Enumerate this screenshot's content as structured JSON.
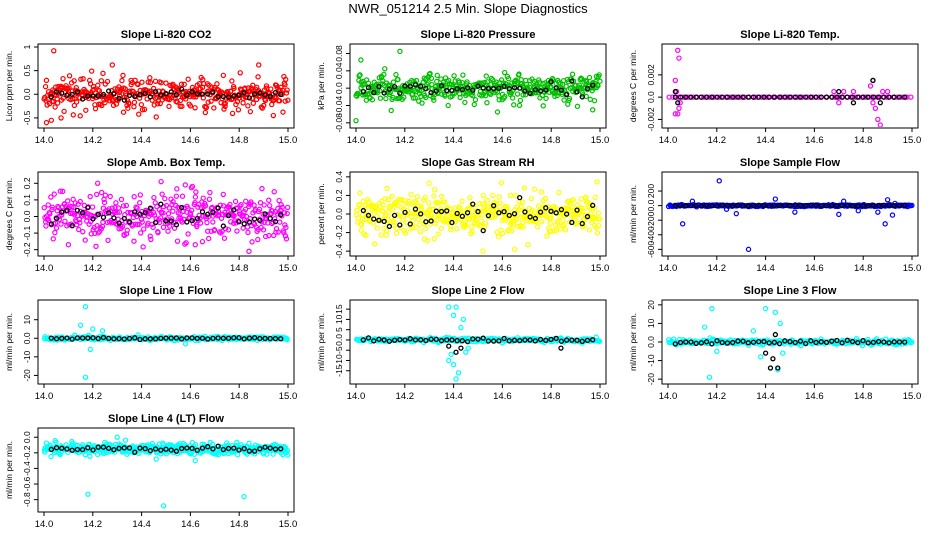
{
  "figure_title": "NWR_051214  2.5 Min. Slope Diagnostics",
  "chart_data": [
    {
      "type": "scatter",
      "title": "Slope Li-820 CO2",
      "ylabel": "Licor ppm per min.",
      "xlim": [
        14.0,
        15.0
      ],
      "ylim": [
        -0.65,
        1.0
      ],
      "yticks": [
        -0.5,
        0.0,
        0.5,
        1.0
      ],
      "xticks": [
        14.0,
        14.2,
        14.4,
        14.6,
        14.8,
        15.0
      ],
      "color": "#ff0000",
      "center": 0.0,
      "spread": 0.3,
      "points": 420,
      "black_spread": 0.09,
      "outliers": [
        [
          14.04,
          0.92
        ],
        [
          14.01,
          -0.6
        ],
        [
          14.03,
          -0.55
        ],
        [
          14.07,
          -0.5
        ],
        [
          14.28,
          0.62
        ],
        [
          14.88,
          0.62
        ],
        [
          14.46,
          -0.48
        ],
        [
          14.94,
          -0.45
        ]
      ]
    },
    {
      "type": "scatter",
      "title": "Slope Li-820 Pressure",
      "ylabel": "kPa per min.",
      "xlim": [
        14.0,
        15.0
      ],
      "ylim": [
        -0.085,
        0.095
      ],
      "yticks": [
        -0.08,
        -0.04,
        0.0,
        0.04,
        0.08
      ],
      "xticks": [
        14.0,
        14.2,
        14.4,
        14.6,
        14.8,
        15.0
      ],
      "color": "#00c000",
      "center": 0.0,
      "spread": 0.028,
      "points": 420,
      "black_spread": 0.012,
      "outliers": [
        [
          14.18,
          0.085
        ],
        [
          14.0,
          -0.075
        ],
        [
          14.02,
          0.065
        ],
        [
          14.97,
          -0.05
        ],
        [
          14.58,
          -0.055
        ]
      ]
    },
    {
      "type": "scatter",
      "title": "Slope Li-820 Temp.",
      "ylabel": "degrees C per min.",
      "xlim": [
        14.0,
        15.0
      ],
      "ylim": [
        -0.0025,
        0.0045
      ],
      "yticks": [
        -0.002,
        0.0,
        0.002
      ],
      "xticks": [
        14.0,
        14.2,
        14.4,
        14.6,
        14.8,
        15.0
      ],
      "color": "#ff00ff",
      "center": 0.0,
      "spread": 0.0,
      "points": 80,
      "black_spread": 0.0,
      "outliers": [
        [
          14.04,
          0.0042
        ],
        [
          14.045,
          0.0035
        ],
        [
          14.03,
          0.0015
        ],
        [
          14.035,
          0.0005
        ],
        [
          14.05,
          -0.0005
        ],
        [
          14.045,
          -0.001
        ],
        [
          14.03,
          -0.0015
        ],
        [
          14.04,
          -0.0015
        ],
        [
          14.68,
          0.0005
        ],
        [
          14.72,
          0.0005
        ],
        [
          14.7,
          -0.0005
        ],
        [
          14.83,
          0.001
        ],
        [
          14.84,
          0.0015
        ],
        [
          14.85,
          -0.001
        ],
        [
          14.86,
          -0.002
        ],
        [
          14.87,
          -0.0025
        ],
        [
          14.88,
          0.0005
        ],
        [
          14.9,
          0.0005
        ],
        [
          14.84,
          -0.0005
        ],
        [
          14.76,
          0.0005
        ]
      ],
      "black_outliers": [
        [
          14.03,
          0.0005
        ],
        [
          14.04,
          -0.0005
        ],
        [
          14.7,
          0.0005
        ],
        [
          14.84,
          0.0015
        ],
        [
          14.87,
          -0.0005
        ],
        [
          14.76,
          -0.0005
        ]
      ]
    },
    {
      "type": "scatter",
      "title": "Slope Amb. Box Temp.",
      "ylabel": "degrees C per min.",
      "xlim": [
        14.0,
        15.0
      ],
      "ylim": [
        -0.22,
        0.25
      ],
      "yticks": [
        -0.2,
        -0.1,
        0.0,
        0.1,
        0.2
      ],
      "xticks": [
        14.0,
        14.2,
        14.4,
        14.6,
        14.8,
        15.0
      ],
      "color": "#ff00ff",
      "center": 0.0,
      "spread": 0.12,
      "points": 420,
      "black_spread": 0.07,
      "outliers": [
        [
          14.1,
          -0.17
        ],
        [
          14.22,
          0.2
        ],
        [
          14.84,
          -0.21
        ],
        [
          14.48,
          0.21
        ],
        [
          14.62,
          -0.17
        ]
      ]
    },
    {
      "type": "scatter",
      "title": "Slope Gas Stream RH",
      "ylabel": "percent per min.",
      "xlim": [
        14.0,
        15.0
      ],
      "ylim": [
        -0.42,
        0.42
      ],
      "yticks": [
        -0.4,
        -0.2,
        0.0,
        0.2,
        0.4
      ],
      "xticks": [
        14.0,
        14.2,
        14.4,
        14.6,
        14.8,
        15.0
      ],
      "color": "#ffff00",
      "center": 0.0,
      "spread": 0.2,
      "points": 450,
      "black_spread": 0.12,
      "outliers": [
        [
          14.52,
          -0.4
        ],
        [
          14.65,
          -0.38
        ],
        [
          14.3,
          0.33
        ]
      ]
    },
    {
      "type": "scatter",
      "title": "Slope Sample Flow",
      "ylabel": "ml/min per min.",
      "xlim": [
        14.0,
        15.0
      ],
      "ylim": [
        -650,
        420
      ],
      "yticks": [
        -600,
        -400,
        -200,
        0,
        200
      ],
      "xticks": [
        14.0,
        14.2,
        14.4,
        14.6,
        14.8,
        15.0
      ],
      "color": "#0000ff",
      "center": 0.0,
      "spread": 12,
      "points": 240,
      "black_spread": 6,
      "outliers": [
        [
          14.21,
          340
        ],
        [
          14.33,
          -600
        ],
        [
          14.06,
          -250
        ],
        [
          14.89,
          -250
        ],
        [
          14.28,
          -110
        ],
        [
          14.1,
          60
        ],
        [
          14.24,
          -50
        ],
        [
          14.44,
          90
        ],
        [
          14.52,
          -90
        ],
        [
          14.7,
          -120
        ],
        [
          14.72,
          60
        ],
        [
          14.78,
          -70
        ],
        [
          14.86,
          -90
        ],
        [
          14.9,
          80
        ],
        [
          14.92,
          -130
        ],
        [
          14.93,
          30
        ]
      ]
    },
    {
      "type": "scatter",
      "title": "Slope Line 1 Flow",
      "ylabel": "ml/min per min.",
      "xlim": [
        14.0,
        15.0
      ],
      "ylim": [
        -23,
        19
      ],
      "yticks": [
        -20,
        -10,
        0,
        10
      ],
      "xticks": [
        14.0,
        14.2,
        14.4,
        14.6,
        14.8,
        15.0
      ],
      "color": "#00ffff",
      "center": 0.0,
      "spread": 0.9,
      "points": 260,
      "black_spread": 0.4,
      "outliers": [
        [
          14.17,
          17
        ],
        [
          14.17,
          -21
        ],
        [
          14.15,
          7
        ],
        [
          14.19,
          -6
        ],
        [
          14.24,
          4
        ],
        [
          14.58,
          -3
        ],
        [
          14.2,
          5
        ]
      ]
    },
    {
      "type": "scatter",
      "title": "Slope Line 2 Flow",
      "ylabel": "ml/min per min.",
      "xlim": [
        14.0,
        15.0
      ],
      "ylim": [
        -20,
        18
      ],
      "yticks": [
        -15,
        -10,
        -5,
        0,
        5,
        10,
        15
      ],
      "xticks": [
        14.0,
        14.2,
        14.4,
        14.6,
        14.8,
        15.0
      ],
      "color": "#00ffff",
      "center": 0.0,
      "spread": 0.9,
      "points": 260,
      "black_spread": 0.6,
      "outliers": [
        [
          14.38,
          16
        ],
        [
          14.41,
          16
        ],
        [
          14.4,
          12
        ],
        [
          14.44,
          10
        ],
        [
          14.38,
          -10
        ],
        [
          14.4,
          -12
        ],
        [
          14.42,
          -16
        ],
        [
          14.41,
          -19
        ],
        [
          14.43,
          6
        ],
        [
          14.39,
          -7
        ],
        [
          14.45,
          -6
        ],
        [
          14.46,
          -4
        ]
      ],
      "black_outliers": [
        [
          14.38,
          -3
        ],
        [
          14.41,
          -6
        ],
        [
          14.43,
          -4
        ],
        [
          14.84,
          -4
        ]
      ]
    },
    {
      "type": "scatter",
      "title": "Slope Line 3 Flow",
      "ylabel": "ml/min per min.",
      "xlim": [
        14.0,
        15.0
      ],
      "ylim": [
        -21,
        21
      ],
      "yticks": [
        -20,
        -10,
        0,
        10,
        20
      ],
      "xticks": [
        14.0,
        14.2,
        14.4,
        14.6,
        14.8,
        15.0
      ],
      "color": "#00ffff",
      "center": 0.0,
      "spread": 1.2,
      "points": 280,
      "black_spread": 0.8,
      "outliers": [
        [
          14.18,
          18
        ],
        [
          14.17,
          -19
        ],
        [
          14.15,
          8
        ],
        [
          14.2,
          -5
        ],
        [
          14.4,
          18
        ],
        [
          14.44,
          16
        ],
        [
          14.42,
          -14
        ],
        [
          14.45,
          -15
        ],
        [
          14.46,
          10
        ],
        [
          14.38,
          -8
        ],
        [
          14.35,
          6
        ],
        [
          14.47,
          -6
        ]
      ],
      "black_outliers": [
        [
          14.42,
          -14
        ],
        [
          14.45,
          -14
        ],
        [
          14.44,
          4
        ],
        [
          14.4,
          -6
        ],
        [
          14.43,
          -9
        ]
      ]
    },
    {
      "type": "scatter",
      "title": "Slope Line 4 (LT) Flow",
      "ylabel": "ml/min per min.",
      "xlim": [
        14.0,
        15.0
      ],
      "ylim": [
        -0.92,
        0.08
      ],
      "yticks": [
        -0.8,
        -0.6,
        -0.4,
        -0.2,
        0.0
      ],
      "xticks": [
        14.0,
        14.2,
        14.4,
        14.6,
        14.8,
        15.0
      ],
      "color": "#00ffff",
      "center": -0.15,
      "spread": 0.06,
      "points": 420,
      "black_spread": 0.035,
      "outliers": [
        [
          14.18,
          -0.73
        ],
        [
          14.49,
          -0.88
        ],
        [
          14.82,
          -0.76
        ],
        [
          14.46,
          -0.28
        ],
        [
          14.62,
          -0.3
        ],
        [
          14.3,
          0.0
        ]
      ]
    }
  ]
}
